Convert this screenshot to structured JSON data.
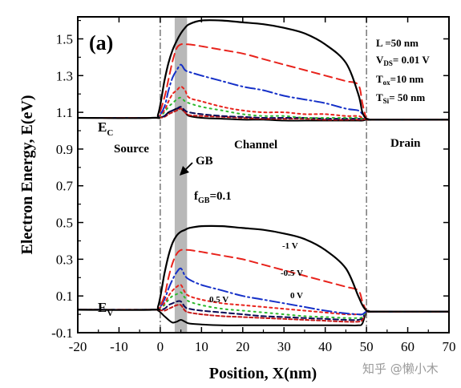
{
  "chart_data": {
    "type": "line",
    "panel_label": "(a)",
    "xlabel": "Position, X(nm)",
    "ylabel": "Electron Energy, E(eV)",
    "xlim": [
      -20,
      70
    ],
    "ylim": [
      -0.1,
      1.62
    ],
    "xticks": [
      -20,
      -10,
      0,
      10,
      20,
      30,
      40,
      50,
      60,
      70
    ],
    "yticks": [
      -0.1,
      0.1,
      0.3,
      0.5,
      0.7,
      0.9,
      1.1,
      1.3,
      1.5
    ],
    "grain_boundary": {
      "x_from": 3.5,
      "x_to": 6.5,
      "label": "GB",
      "fraction_label": "f",
      "fraction_sub": "GB",
      "fraction_value": "=0.1"
    },
    "junction_lines": [
      0,
      50
    ],
    "regions": {
      "source": "Source",
      "channel": "Channel",
      "drain": "Drain"
    },
    "band_labels": {
      "conduction": {
        "main": "E",
        "sub": "C"
      },
      "valence": {
        "main": "E",
        "sub": "V"
      }
    },
    "parameters": [
      {
        "main": "L",
        "sub": "",
        "value": "  =50 nm"
      },
      {
        "main": "V",
        "sub": "DS",
        "value": "= 0.01 V"
      },
      {
        "main": "T",
        "sub": "ox",
        "value": "=10 nm"
      },
      {
        "main": "T",
        "sub": "Si",
        "value": "= 50 nm"
      }
    ],
    "x": [
      -20,
      -2,
      -0.5,
      1,
      2,
      3,
      4,
      5,
      6,
      7,
      10,
      15,
      20,
      25,
      30,
      35,
      40,
      45,
      48,
      49,
      50,
      51,
      52,
      70
    ],
    "series": [
      {
        "label": "-1 V",
        "color": "#000000",
        "dash": "",
        "ec": [
          1.07,
          1.07,
          1.09,
          1.27,
          1.37,
          1.44,
          1.49,
          1.53,
          1.56,
          1.58,
          1.6,
          1.6,
          1.59,
          1.58,
          1.56,
          1.53,
          1.47,
          1.37,
          1.2,
          1.1,
          1.065,
          1.06,
          1.06,
          1.06
        ],
        "ev": [
          0.025,
          0.025,
          0.045,
          0.22,
          0.32,
          0.39,
          0.43,
          0.45,
          0.46,
          0.47,
          0.48,
          0.48,
          0.47,
          0.46,
          0.44,
          0.41,
          0.35,
          0.25,
          0.1,
          0.05,
          0.02,
          0.015,
          0.015,
          0.015
        ]
      },
      {
        "label": "-0.5 V",
        "color": "#e8231c",
        "dash": "10 6",
        "ec": [
          1.07,
          1.07,
          1.08,
          1.18,
          1.28,
          1.38,
          1.45,
          1.47,
          1.47,
          1.47,
          1.46,
          1.44,
          1.42,
          1.39,
          1.36,
          1.33,
          1.3,
          1.27,
          1.25,
          1.15,
          1.065,
          1.06,
          1.06,
          1.06
        ],
        "ev": [
          0.025,
          0.025,
          0.03,
          0.1,
          0.2,
          0.28,
          0.33,
          0.35,
          0.35,
          0.35,
          0.34,
          0.32,
          0.3,
          0.27,
          0.24,
          0.21,
          0.18,
          0.15,
          0.13,
          0.07,
          0.02,
          0.015,
          0.015,
          0.015
        ]
      },
      {
        "label": "0 V",
        "color": "#1530c8",
        "dash": "12 4 2 4",
        "ec": [
          1.07,
          1.07,
          1.075,
          1.13,
          1.22,
          1.29,
          1.33,
          1.36,
          1.33,
          1.32,
          1.3,
          1.27,
          1.24,
          1.22,
          1.19,
          1.17,
          1.15,
          1.12,
          1.11,
          1.09,
          1.065,
          1.06,
          1.06,
          1.06
        ],
        "ev": [
          0.025,
          0.025,
          0.028,
          0.08,
          0.14,
          0.19,
          0.23,
          0.25,
          0.21,
          0.19,
          0.16,
          0.13,
          0.1,
          0.08,
          0.06,
          0.04,
          0.02,
          0.005,
          0,
          0,
          0.015,
          0.015,
          0.015,
          0.015
        ]
      },
      {
        "label": "",
        "color": "#e8231c",
        "dash": "3 4",
        "ec": [
          1.07,
          1.07,
          1.075,
          1.11,
          1.16,
          1.2,
          1.22,
          1.24,
          1.22,
          1.18,
          1.16,
          1.13,
          1.11,
          1.1,
          1.1,
          1.09,
          1.09,
          1.08,
          1.08,
          1.07,
          1.065,
          1.06,
          1.06,
          1.06
        ],
        "ev": [
          0.025,
          0.025,
          0.03,
          0.06,
          0.1,
          0.13,
          0.15,
          0.16,
          0.12,
          0.1,
          0.08,
          0.06,
          0.05,
          0.04,
          0.03,
          0.02,
          0.01,
          0,
          0,
          0,
          0.015,
          0.015,
          0.015,
          0.015
        ]
      },
      {
        "label": "0.5 V",
        "color": "#2db82d",
        "dash": "2 5",
        "ec": [
          1.07,
          1.07,
          1.07,
          1.1,
          1.13,
          1.15,
          1.17,
          1.18,
          1.16,
          1.15,
          1.13,
          1.11,
          1.09,
          1.08,
          1.08,
          1.07,
          1.07,
          1.07,
          1.07,
          1.065,
          1.065,
          1.06,
          1.06,
          1.06
        ],
        "ev": [
          0.025,
          0.025,
          0.028,
          0.05,
          0.08,
          0.1,
          0.11,
          0.12,
          0.09,
          0.07,
          0.05,
          0.03,
          0.02,
          0.01,
          0,
          -0.01,
          -0.015,
          -0.02,
          -0.02,
          -0.015,
          0.015,
          0.015,
          0.015,
          0.015
        ]
      },
      {
        "label": "",
        "color": "#0a0a55",
        "dash": "6 4",
        "ec": [
          1.07,
          1.07,
          1.07,
          1.08,
          1.1,
          1.11,
          1.12,
          1.13,
          1.11,
          1.1,
          1.09,
          1.08,
          1.075,
          1.07,
          1.07,
          1.07,
          1.065,
          1.065,
          1.065,
          1.065,
          1.065,
          1.06,
          1.06,
          1.06
        ],
        "ev": [
          0.025,
          0.025,
          0.025,
          0.03,
          0.05,
          0.06,
          0.07,
          0.07,
          0.04,
          0.03,
          0.02,
          0.01,
          0,
          -0.01,
          -0.015,
          -0.02,
          -0.025,
          -0.03,
          -0.03,
          -0.02,
          0.015,
          0.015,
          0.015,
          0.015
        ]
      },
      {
        "label": "",
        "color": "#c41818",
        "dash": "4 3",
        "ec": [
          1.07,
          1.07,
          1.07,
          1.075,
          1.09,
          1.1,
          1.11,
          1.12,
          1.1,
          1.085,
          1.08,
          1.075,
          1.07,
          1.065,
          1.065,
          1.065,
          1.06,
          1.06,
          1.06,
          1.06,
          1.065,
          1.06,
          1.06,
          1.06
        ],
        "ev": [
          0.025,
          0.025,
          0.025,
          0.02,
          0.03,
          0.04,
          0.05,
          0.05,
          0.02,
          0.01,
          0,
          -0.01,
          -0.015,
          -0.02,
          -0.025,
          -0.03,
          -0.035,
          -0.04,
          -0.04,
          -0.03,
          0.015,
          0.015,
          0.015,
          0.015
        ]
      },
      {
        "label": "",
        "color": "#000000",
        "dash": "",
        "ec": [
          1.07,
          1.07,
          1.07,
          1.08,
          1.1,
          1.11,
          1.12,
          1.12,
          1.1,
          1.08,
          1.07,
          1.065,
          1.06,
          1.06,
          1.055,
          1.055,
          1.055,
          1.055,
          1.055,
          1.055,
          1.06,
          1.06,
          1.06,
          1.06
        ],
        "ev": [
          0.025,
          0.025,
          0.02,
          -0.01,
          -0.03,
          -0.045,
          -0.04,
          -0.03,
          -0.04,
          -0.05,
          -0.055,
          -0.06,
          -0.06,
          -0.06,
          -0.06,
          -0.06,
          -0.06,
          -0.06,
          -0.06,
          -0.05,
          0.015,
          0.015,
          0.015,
          0.015
        ]
      }
    ]
  },
  "watermark": "知乎 @懒小木"
}
